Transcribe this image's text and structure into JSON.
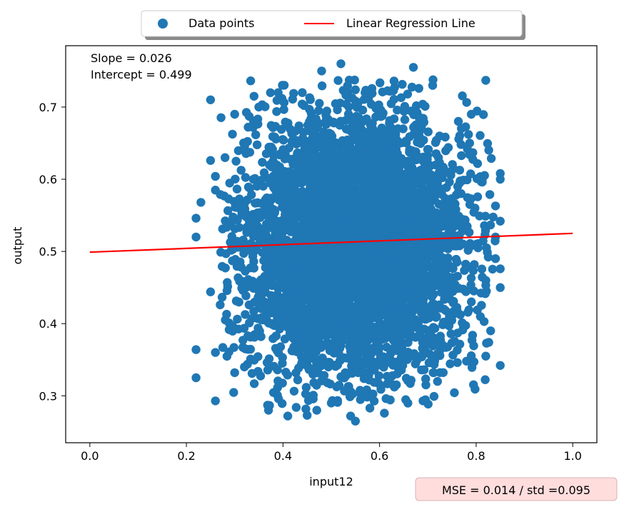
{
  "chart_data": {
    "type": "scatter",
    "xlabel": "input12",
    "ylabel": "output",
    "xlim": [
      -0.05,
      1.05
    ],
    "ylim": [
      0.235,
      0.785
    ],
    "xticks": [
      "0.0",
      "0.2",
      "0.4",
      "0.6",
      "0.8",
      "1.0"
    ],
    "yticks": [
      "0.3",
      "0.4",
      "0.5",
      "0.6",
      "0.7"
    ],
    "legend": {
      "placement": "top-center",
      "entries": [
        "Data points",
        "Linear Regression Line"
      ]
    },
    "annotations": {
      "slope": "Slope = 0.026",
      "intercept": "Intercept = 0.499",
      "mse": "MSE = 0.014 / std =0.095"
    },
    "series": [
      {
        "name": "Data points",
        "kind": "scatter",
        "color": "#1f77b4",
        "points": [
          [
            0.25,
            0.71
          ],
          [
            0.28,
            0.63
          ],
          [
            0.3,
            0.69
          ],
          [
            0.34,
            0.715
          ],
          [
            0.35,
            0.7
          ],
          [
            0.39,
            0.72
          ],
          [
            0.44,
            0.72
          ],
          [
            0.48,
            0.75
          ],
          [
            0.52,
            0.76
          ],
          [
            0.55,
            0.724
          ],
          [
            0.57,
            0.72
          ],
          [
            0.63,
            0.736
          ],
          [
            0.67,
            0.755
          ],
          [
            0.71,
            0.73
          ],
          [
            0.79,
            0.69
          ],
          [
            0.82,
            0.737
          ],
          [
            0.23,
            0.568
          ],
          [
            0.22,
            0.546
          ],
          [
            0.22,
            0.52
          ],
          [
            0.25,
            0.626
          ],
          [
            0.26,
            0.604
          ],
          [
            0.26,
            0.585
          ],
          [
            0.85,
            0.608
          ],
          [
            0.85,
            0.6
          ],
          [
            0.84,
            0.563
          ],
          [
            0.85,
            0.542
          ],
          [
            0.84,
            0.52
          ],
          [
            0.85,
            0.476
          ],
          [
            0.84,
            0.49
          ],
          [
            0.85,
            0.45
          ],
          [
            0.22,
            0.364
          ],
          [
            0.22,
            0.325
          ],
          [
            0.26,
            0.293
          ],
          [
            0.26,
            0.36
          ],
          [
            0.25,
            0.444
          ],
          [
            0.27,
            0.426
          ],
          [
            0.85,
            0.342
          ],
          [
            0.82,
            0.355
          ],
          [
            0.83,
            0.39
          ],
          [
            0.41,
            0.272
          ],
          [
            0.55,
            0.265
          ],
          [
            0.54,
            0.272
          ],
          [
            0.61,
            0.276
          ],
          [
            0.45,
            0.273
          ],
          [
            0.37,
            0.28
          ],
          [
            0.69,
            0.293
          ],
          [
            0.72,
            0.32
          ],
          [
            0.78,
            0.348
          ],
          [
            0.3,
            0.332
          ],
          [
            0.32,
            0.34
          ],
          [
            0.47,
            0.28
          ],
          [
            0.5,
            0.29
          ],
          [
            0.58,
            0.283
          ]
        ],
        "cluster": {
          "center": [
            0.55,
            0.51
          ],
          "x_std": 0.115,
          "y_std": 0.09,
          "x_range": [
            0.27,
            0.84
          ],
          "y_range": [
            0.28,
            0.74
          ],
          "count": 5000
        }
      },
      {
        "name": "Linear Regression Line",
        "kind": "line",
        "color": "#ff0000",
        "x": [
          0.0,
          1.0
        ],
        "y": [
          0.499,
          0.525
        ]
      }
    ]
  }
}
